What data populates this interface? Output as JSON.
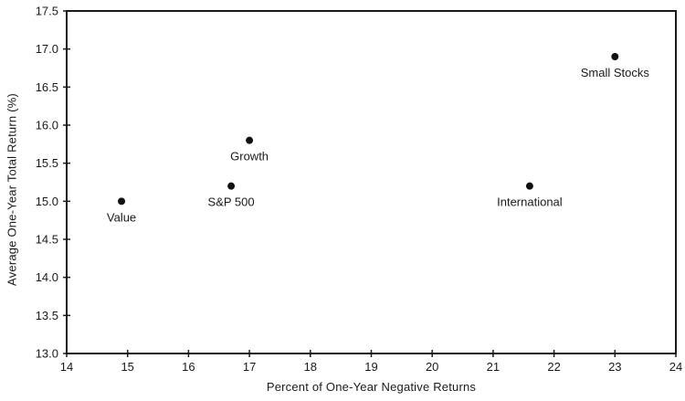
{
  "chart_data": {
    "type": "scatter",
    "title": "",
    "xlabel": "Percent of One-Year Negative Returns",
    "ylabel": "Average One-Year Total Return (%)",
    "xlim": [
      14,
      24
    ],
    "ylim": [
      13.0,
      17.5
    ],
    "x_ticks": [
      14,
      15,
      16,
      17,
      18,
      19,
      20,
      21,
      22,
      23,
      24
    ],
    "y_ticks": [
      13.0,
      13.5,
      14.0,
      14.5,
      15.0,
      15.5,
      16.0,
      16.5,
      17.0,
      17.5
    ],
    "grid": false,
    "legend": "none",
    "points": [
      {
        "label": "Value",
        "x": 14.9,
        "y": 15.0
      },
      {
        "label": "S&P 500",
        "x": 16.7,
        "y": 15.2
      },
      {
        "label": "Growth",
        "x": 17.0,
        "y": 15.8
      },
      {
        "label": "International",
        "x": 21.6,
        "y": 15.2
      },
      {
        "label": "Small Stocks",
        "x": 23.0,
        "y": 16.9
      }
    ],
    "colors": {
      "axis": "#1a1a1a",
      "marker": "#111111",
      "text": "#1a1a1a",
      "background": "#ffffff"
    }
  }
}
